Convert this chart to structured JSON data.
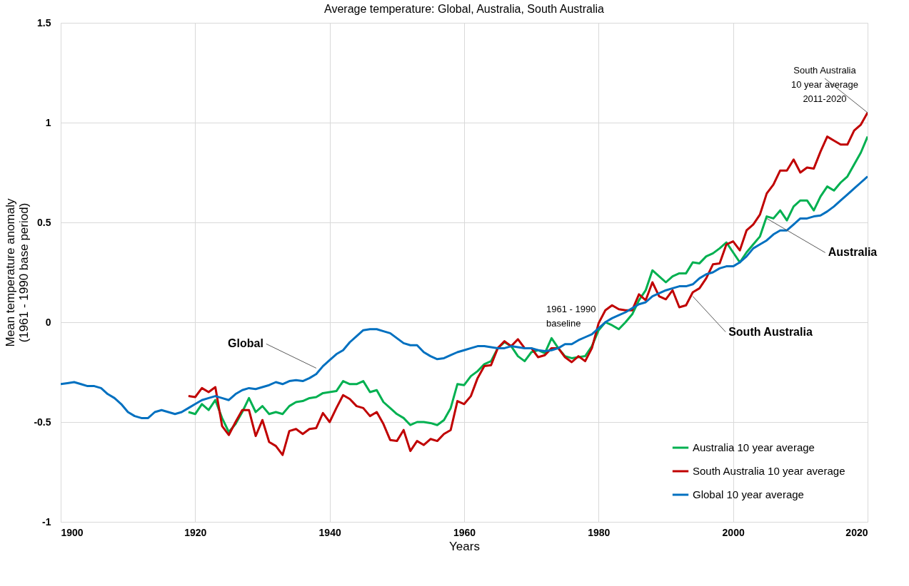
{
  "chart_data": {
    "type": "line",
    "title": "Average temperature: Global, Australia, South Australia",
    "xlabel": "Years",
    "ylabel": "Mean temperature anomaly\n(1961 - 1990 base period)",
    "xlim": [
      1900,
      2020
    ],
    "xticks": [
      1900,
      1920,
      1940,
      1960,
      1980,
      2000,
      2020
    ],
    "ylim": [
      -1,
      1.5
    ],
    "yticks": [
      -1,
      -0.5,
      0,
      0.5,
      1,
      1.5
    ],
    "grid": true,
    "legend": "bottom right",
    "marker": "none",
    "line_style": "solid",
    "series": [
      {
        "name": "Australia 10 year average",
        "color": "#00b050",
        "x": [
          1919,
          1920,
          1921,
          1922,
          1923,
          1924,
          1925,
          1926,
          1927,
          1928,
          1929,
          1930,
          1931,
          1932,
          1933,
          1934,
          1935,
          1936,
          1937,
          1938,
          1939,
          1940,
          1941,
          1942,
          1943,
          1944,
          1945,
          1946,
          1947,
          1948,
          1949,
          1950,
          1951,
          1952,
          1953,
          1954,
          1955,
          1956,
          1957,
          1958,
          1959,
          1960,
          1961,
          1962,
          1963,
          1964,
          1965,
          1966,
          1967,
          1968,
          1969,
          1970,
          1971,
          1972,
          1973,
          1974,
          1975,
          1976,
          1977,
          1978,
          1979,
          1980,
          1981,
          1982,
          1983,
          1984,
          1985,
          1986,
          1987,
          1988,
          1989,
          1990,
          1991,
          1992,
          1993,
          1994,
          1995,
          1996,
          1997,
          1998,
          1999,
          2000,
          2001,
          2002,
          2003,
          2004,
          2005,
          2006,
          2007,
          2008,
          2009,
          2010,
          2011,
          2012,
          2013,
          2014,
          2015,
          2016,
          2017,
          2018,
          2019,
          2020
        ],
        "values": [
          -0.45,
          -0.46,
          -0.41,
          -0.44,
          -0.39,
          -0.48,
          -0.55,
          -0.51,
          -0.45,
          -0.38,
          -0.45,
          -0.42,
          -0.46,
          -0.45,
          -0.46,
          -0.42,
          -0.4,
          -0.395,
          -0.38,
          -0.375,
          -0.355,
          -0.35,
          -0.345,
          -0.295,
          -0.31,
          -0.31,
          -0.295,
          -0.35,
          -0.34,
          -0.4,
          -0.43,
          -0.46,
          -0.48,
          -0.515,
          -0.5,
          -0.5,
          -0.505,
          -0.515,
          -0.49,
          -0.43,
          -0.31,
          -0.315,
          -0.27,
          -0.245,
          -0.21,
          -0.195,
          -0.13,
          -0.1,
          -0.12,
          -0.17,
          -0.195,
          -0.15,
          -0.14,
          -0.155,
          -0.08,
          -0.13,
          -0.17,
          -0.18,
          -0.175,
          -0.17,
          -0.12,
          -0.04,
          0.0,
          -0.015,
          -0.035,
          0.0,
          0.04,
          0.11,
          0.16,
          0.26,
          0.23,
          0.2,
          0.23,
          0.245,
          0.245,
          0.3,
          0.295,
          0.33,
          0.345,
          0.37,
          0.4,
          0.35,
          0.3,
          0.35,
          0.39,
          0.43,
          0.53,
          0.52,
          0.56,
          0.51,
          0.58,
          0.61,
          0.61,
          0.56,
          0.63,
          0.68,
          0.66,
          0.7,
          0.73,
          0.79,
          0.85,
          0.93
        ]
      },
      {
        "name": "South Australia 10 year average",
        "color": "#c00000",
        "x": [
          1919,
          1920,
          1921,
          1922,
          1923,
          1924,
          1925,
          1926,
          1927,
          1928,
          1929,
          1930,
          1931,
          1932,
          1933,
          1934,
          1935,
          1936,
          1937,
          1938,
          1939,
          1940,
          1941,
          1942,
          1943,
          1944,
          1945,
          1946,
          1947,
          1948,
          1949,
          1950,
          1951,
          1952,
          1953,
          1954,
          1955,
          1956,
          1957,
          1958,
          1959,
          1960,
          1961,
          1962,
          1963,
          1964,
          1965,
          1966,
          1967,
          1968,
          1969,
          1970,
          1971,
          1972,
          1973,
          1974,
          1975,
          1976,
          1977,
          1978,
          1979,
          1980,
          1981,
          1982,
          1983,
          1984,
          1985,
          1986,
          1987,
          1988,
          1989,
          1990,
          1991,
          1992,
          1993,
          1994,
          1995,
          1996,
          1997,
          1998,
          1999,
          2000,
          2001,
          2002,
          2003,
          2004,
          2005,
          2006,
          2007,
          2008,
          2009,
          2010,
          2011,
          2012,
          2013,
          2014,
          2015,
          2016,
          2017,
          2018,
          2019,
          2020
        ],
        "values": [
          -0.37,
          -0.375,
          -0.33,
          -0.35,
          -0.325,
          -0.52,
          -0.565,
          -0.5,
          -0.44,
          -0.44,
          -0.57,
          -0.49,
          -0.6,
          -0.62,
          -0.665,
          -0.545,
          -0.535,
          -0.56,
          -0.535,
          -0.53,
          -0.455,
          -0.5,
          -0.43,
          -0.365,
          -0.385,
          -0.42,
          -0.43,
          -0.47,
          -0.45,
          -0.51,
          -0.59,
          -0.595,
          -0.54,
          -0.645,
          -0.595,
          -0.615,
          -0.585,
          -0.595,
          -0.56,
          -0.54,
          -0.395,
          -0.41,
          -0.37,
          -0.28,
          -0.22,
          -0.215,
          -0.13,
          -0.095,
          -0.12,
          -0.085,
          -0.13,
          -0.13,
          -0.175,
          -0.165,
          -0.13,
          -0.13,
          -0.175,
          -0.2,
          -0.17,
          -0.195,
          -0.13,
          -0.005,
          0.06,
          0.085,
          0.065,
          0.06,
          0.06,
          0.14,
          0.11,
          0.2,
          0.13,
          0.115,
          0.16,
          0.075,
          0.085,
          0.15,
          0.17,
          0.22,
          0.29,
          0.295,
          0.39,
          0.405,
          0.36,
          0.46,
          0.49,
          0.54,
          0.645,
          0.69,
          0.76,
          0.76,
          0.815,
          0.75,
          0.775,
          0.77,
          0.855,
          0.93,
          0.91,
          0.89,
          0.89,
          0.96,
          0.99,
          1.05
        ]
      },
      {
        "name": "Global 10 year average",
        "color": "#0070c0",
        "x": [
          1900,
          1901,
          1902,
          1903,
          1904,
          1905,
          1906,
          1907,
          1908,
          1909,
          1910,
          1911,
          1912,
          1913,
          1914,
          1915,
          1916,
          1917,
          1918,
          1919,
          1920,
          1921,
          1922,
          1923,
          1924,
          1925,
          1926,
          1927,
          1928,
          1929,
          1930,
          1931,
          1932,
          1933,
          1934,
          1935,
          1936,
          1937,
          1938,
          1939,
          1940,
          1941,
          1942,
          1943,
          1944,
          1945,
          1946,
          1947,
          1948,
          1949,
          1950,
          1951,
          1952,
          1953,
          1954,
          1955,
          1956,
          1957,
          1958,
          1959,
          1960,
          1961,
          1962,
          1963,
          1964,
          1965,
          1966,
          1967,
          1968,
          1969,
          1970,
          1971,
          1972,
          1973,
          1974,
          1975,
          1976,
          1977,
          1978,
          1979,
          1980,
          1981,
          1982,
          1983,
          1984,
          1985,
          1986,
          1987,
          1988,
          1989,
          1990,
          1991,
          1992,
          1993,
          1994,
          1995,
          1996,
          1997,
          1998,
          1999,
          2000,
          2001,
          2002,
          2003,
          2004,
          2005,
          2006,
          2007,
          2008,
          2009,
          2010,
          2011,
          2012,
          2013,
          2014,
          2015,
          2016,
          2017,
          2018,
          2019,
          2020
        ],
        "values": [
          -0.31,
          -0.305,
          -0.3,
          -0.31,
          -0.32,
          -0.32,
          -0.33,
          -0.36,
          -0.38,
          -0.41,
          -0.45,
          -0.47,
          -0.48,
          -0.48,
          -0.45,
          -0.44,
          -0.45,
          -0.46,
          -0.45,
          -0.43,
          -0.41,
          -0.39,
          -0.38,
          -0.37,
          -0.38,
          -0.39,
          -0.36,
          -0.34,
          -0.33,
          -0.335,
          -0.325,
          -0.315,
          -0.3,
          -0.31,
          -0.295,
          -0.29,
          -0.295,
          -0.28,
          -0.26,
          -0.22,
          -0.19,
          -0.16,
          -0.14,
          -0.1,
          -0.07,
          -0.04,
          -0.035,
          -0.035,
          -0.045,
          -0.055,
          -0.08,
          -0.105,
          -0.115,
          -0.115,
          -0.15,
          -0.17,
          -0.185,
          -0.18,
          -0.165,
          -0.15,
          -0.14,
          -0.13,
          -0.12,
          -0.12,
          -0.125,
          -0.13,
          -0.13,
          -0.12,
          -0.125,
          -0.13,
          -0.13,
          -0.14,
          -0.145,
          -0.14,
          -0.13,
          -0.11,
          -0.11,
          -0.09,
          -0.075,
          -0.06,
          -0.03,
          0.0,
          0.02,
          0.035,
          0.05,
          0.07,
          0.09,
          0.1,
          0.13,
          0.145,
          0.16,
          0.17,
          0.18,
          0.18,
          0.19,
          0.22,
          0.24,
          0.25,
          0.27,
          0.28,
          0.28,
          0.3,
          0.33,
          0.37,
          0.39,
          0.41,
          0.44,
          0.46,
          0.46,
          0.49,
          0.52,
          0.52,
          0.53,
          0.535,
          0.555,
          0.58,
          0.61,
          0.64,
          0.67,
          0.7,
          0.73
        ]
      }
    ],
    "annotations": [
      {
        "text": "Global",
        "x": 1938,
        "y": -0.23
      },
      {
        "text": "Australia",
        "x": 2005,
        "y": 0.52
      },
      {
        "text": "South Australia",
        "x": 1994,
        "y": 0.13
      },
      {
        "text": "South Australia\n10 year average\n2011-2020",
        "x": 2020,
        "y": 1.05
      },
      "1961 - 1990\nbaseline"
    ]
  }
}
